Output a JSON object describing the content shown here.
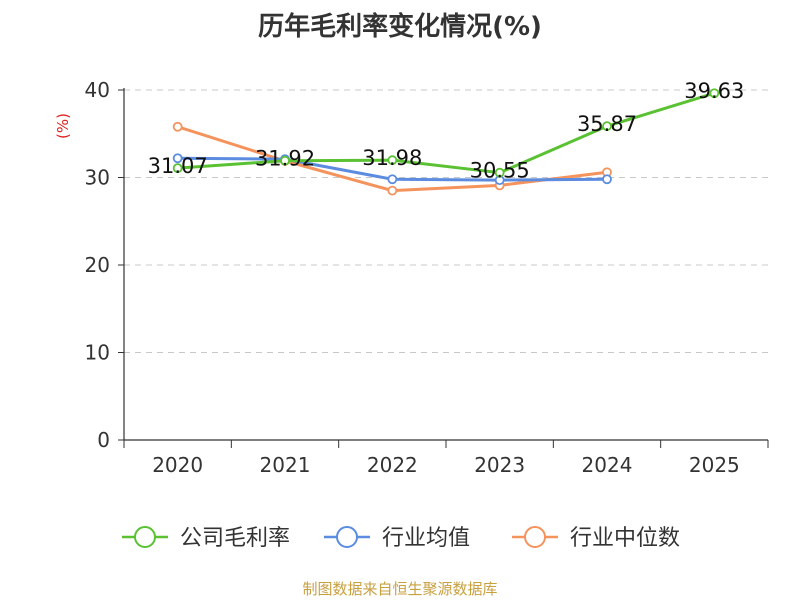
{
  "chart_data": {
    "type": "line",
    "title": "历年毛利率变化情况(%)",
    "ylabel": "(%)",
    "xlabel": "",
    "categories": [
      "2020",
      "2021",
      "2022",
      "2023",
      "2024",
      "2025"
    ],
    "ylim": [
      0,
      40
    ],
    "yticks": [
      0,
      10,
      20,
      30,
      40
    ],
    "grid": true,
    "legend_position": "bottom",
    "series": [
      {
        "name": "公司毛利率",
        "color": "#5ac232",
        "values": [
          31.07,
          31.92,
          31.98,
          30.55,
          35.87,
          39.63
        ],
        "labels": [
          "31.07",
          "31.92",
          "31.98",
          "30.55",
          "35.87",
          "39.63"
        ]
      },
      {
        "name": "行业均值",
        "color": "#5b8ce0",
        "values": [
          32.2,
          32.1,
          29.8,
          29.7,
          29.8,
          null
        ]
      },
      {
        "name": "行业中位数",
        "color": "#f5935d",
        "values": [
          35.8,
          31.9,
          28.5,
          29.1,
          30.6,
          null
        ]
      }
    ]
  },
  "source_text": "制图数据来自恒生聚源数据库"
}
